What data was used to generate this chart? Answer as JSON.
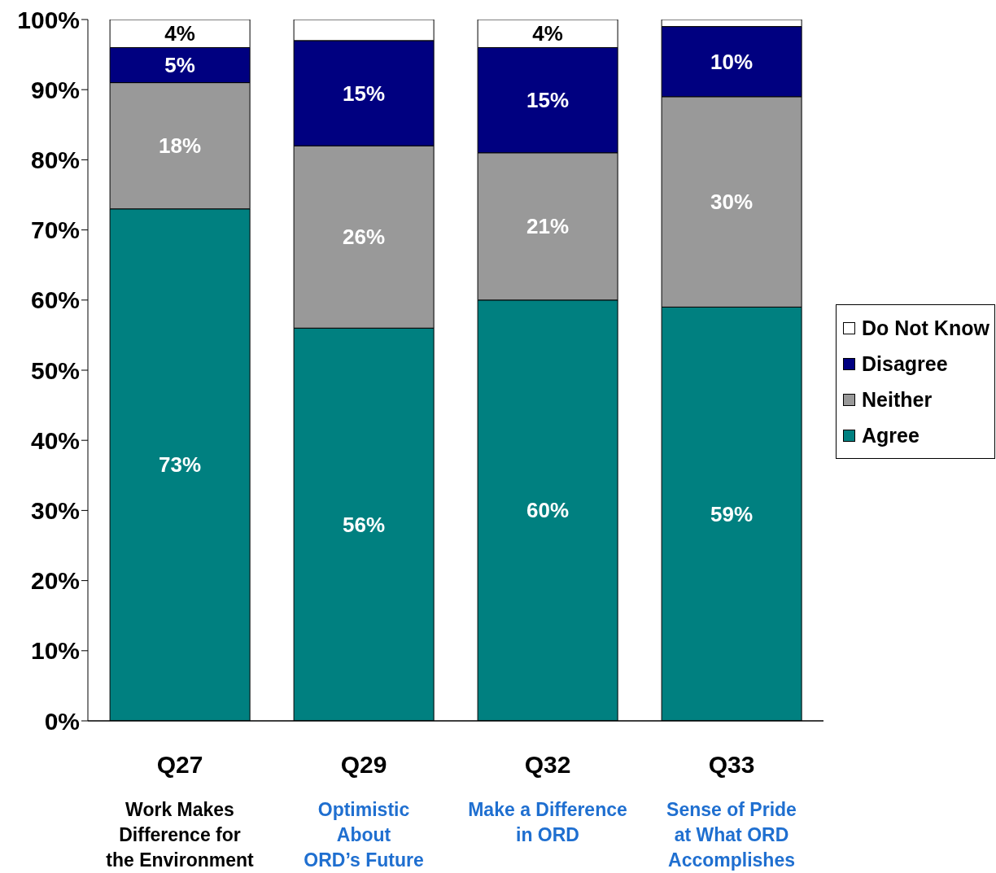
{
  "chart_data": {
    "type": "bar",
    "stacked": true,
    "categories": [
      "Q27\nWork Makes\nDifference for\nthe Environment",
      "Q29\nOptimistic\nAbout\nORD’s Future",
      "Q32\nMake a Difference\nin ORD",
      "Q33\nSense of Pride\nat What ORD\nAccomplishes"
    ],
    "series": [
      {
        "name": "Agree",
        "color": "#008080",
        "values": [
          73,
          56,
          60,
          59
        ],
        "value_labels": [
          "73%",
          "56%",
          "60%",
          "59%"
        ]
      },
      {
        "name": "Neither",
        "color": "#999999",
        "values": [
          18,
          26,
          21,
          30
        ],
        "value_labels": [
          "18%",
          "26%",
          "21%",
          "30%"
        ]
      },
      {
        "name": "Disagree",
        "color": "#000080",
        "values": [
          5,
          15,
          15,
          10
        ],
        "value_labels": [
          "5%",
          "15%",
          "15%",
          "10%"
        ]
      },
      {
        "name": "Do Not Know",
        "color": "#ffffff",
        "values": [
          4,
          3,
          4,
          1
        ],
        "value_labels": [
          "4%",
          null,
          "4%",
          null
        ]
      }
    ],
    "ylim": [
      0,
      100
    ],
    "yticks": [
      {
        "value": 0,
        "label": "0%"
      },
      {
        "value": 10,
        "label": "10%"
      },
      {
        "value": 20,
        "label": "20%"
      },
      {
        "value": 30,
        "label": "30%"
      },
      {
        "value": 40,
        "label": "40%"
      },
      {
        "value": 50,
        "label": "50%"
      },
      {
        "value": 60,
        "label": "60%"
      },
      {
        "value": 70,
        "label": "70%"
      },
      {
        "value": 80,
        "label": "80%"
      },
      {
        "value": 90,
        "label": "90%"
      },
      {
        "value": 100,
        "label": "100%"
      }
    ],
    "grid": false,
    "legend": "right"
  }
}
